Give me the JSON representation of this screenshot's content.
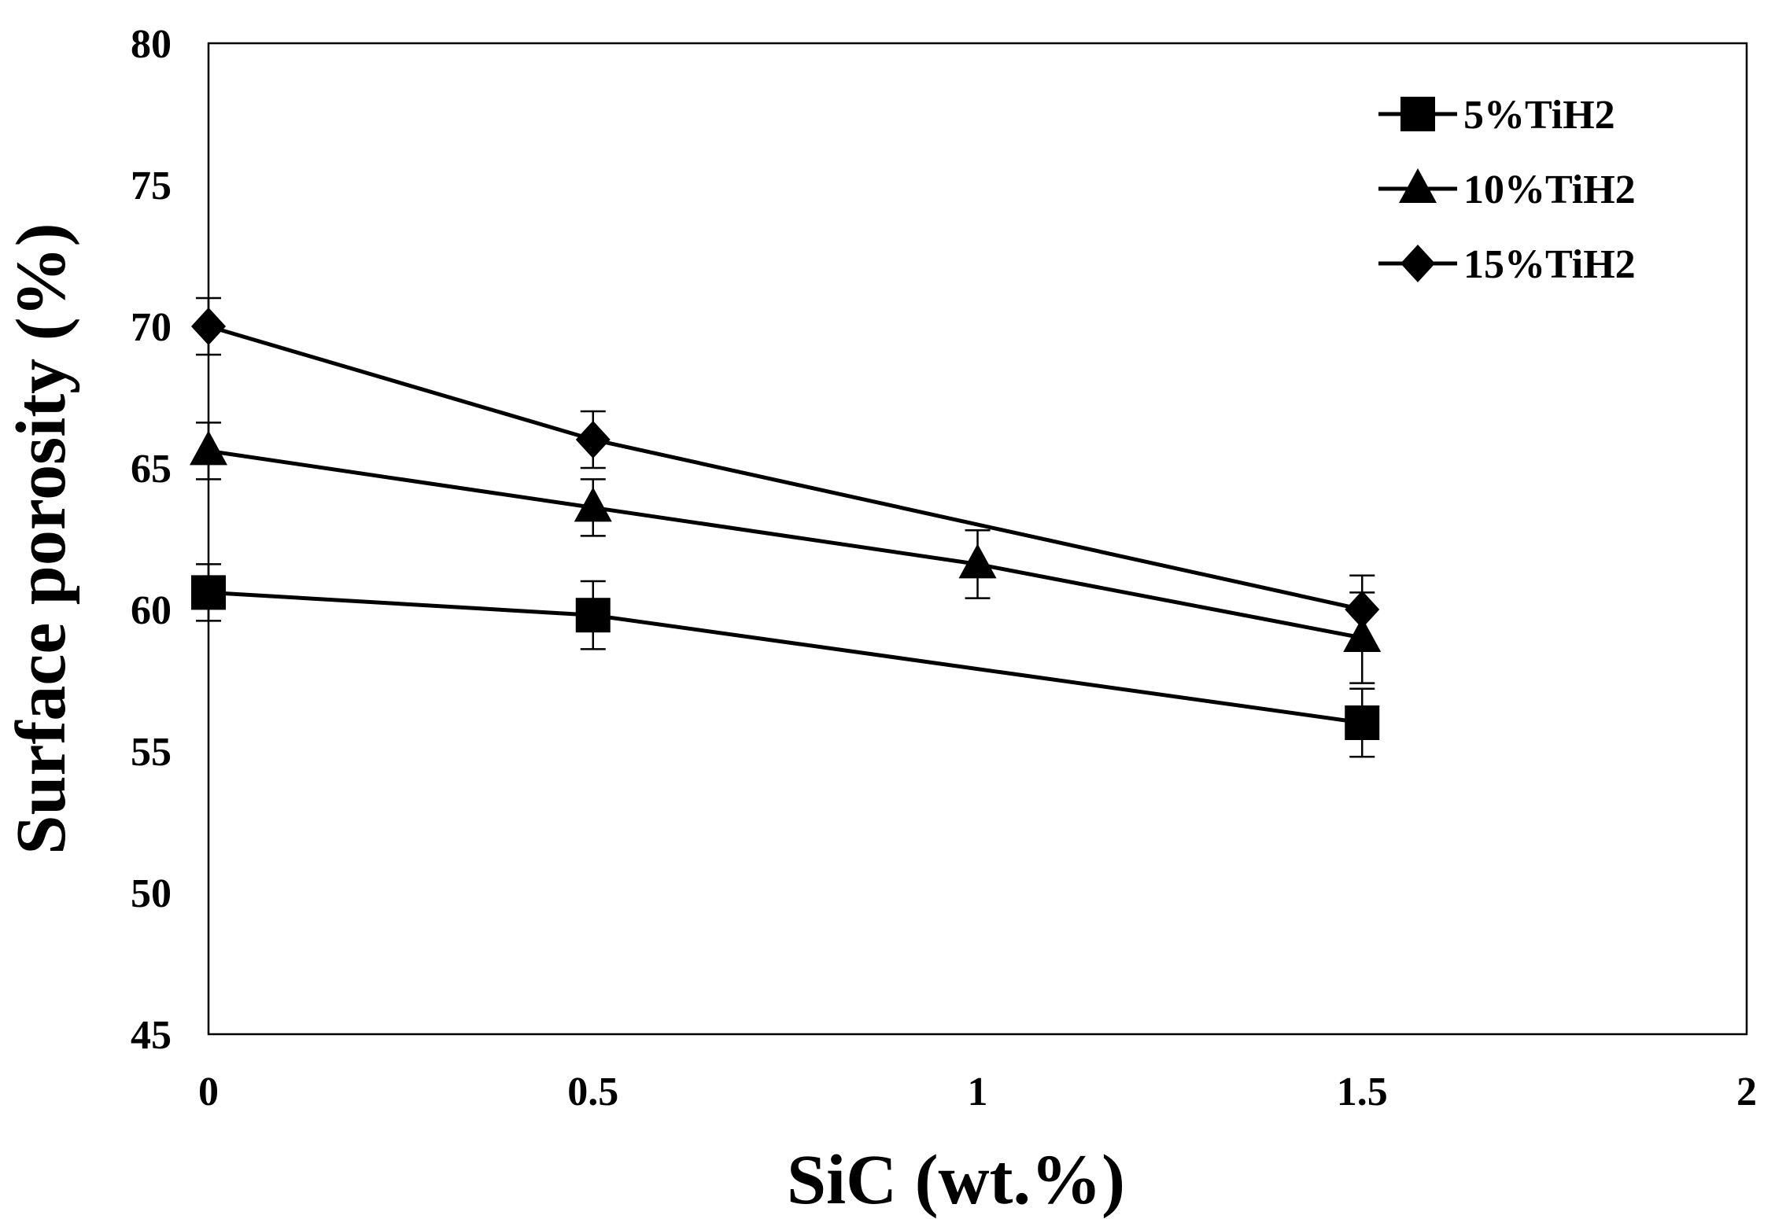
{
  "chart_data": {
    "type": "line",
    "title": "",
    "xlabel": "SiC (wt.%)",
    "ylabel": "Surface porosity  (%)",
    "xlim": [
      0,
      2
    ],
    "ylim": [
      45,
      80
    ],
    "xticks": [
      0,
      0.5,
      1,
      1.5,
      2
    ],
    "xtick_labels": [
      "0",
      "0.5",
      "1",
      "1.5",
      "2"
    ],
    "yticks": [
      45,
      50,
      55,
      60,
      65,
      70,
      75,
      80
    ],
    "ytick_labels": [
      "45",
      "50",
      "55",
      "60",
      "65",
      "70",
      "75",
      "80"
    ],
    "grid": false,
    "legend_position": "top-right",
    "series": [
      {
        "name": "5%TiH2",
        "marker": "square",
        "x": [
          0,
          0.5,
          1.5
        ],
        "y": [
          60.6,
          59.8,
          56.0
        ],
        "err": [
          1.0,
          1.2,
          1.2
        ]
      },
      {
        "name": "10%TiH2",
        "marker": "triangle",
        "x": [
          0,
          0.5,
          1,
          1.5
        ],
        "y": [
          65.6,
          63.6,
          61.6,
          59.0
        ],
        "err": [
          1.0,
          1.0,
          1.2,
          1.6
        ]
      },
      {
        "name": "15%TiH2",
        "marker": "diamond",
        "x": [
          0,
          0.5,
          1.5
        ],
        "y": [
          70.0,
          66.0,
          60.0
        ],
        "err": [
          1.0,
          1.0,
          1.2
        ]
      }
    ]
  }
}
